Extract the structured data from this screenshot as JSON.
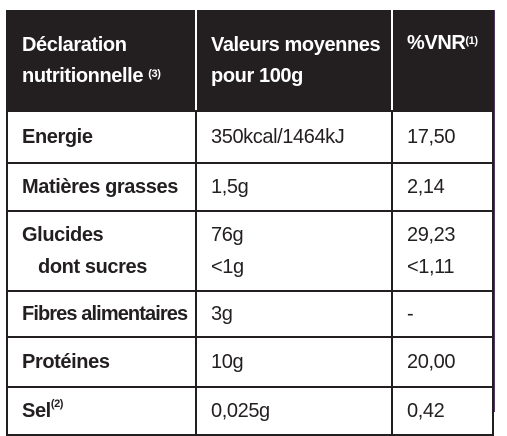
{
  "header": {
    "col1_line1": "Déclaration",
    "col1_line2": "nutritionnelle",
    "col1_sup": "(3)",
    "col2_line1": "Valeurs moyennes",
    "col2_line2": "pour 100g",
    "col3_label": "%VNR",
    "col3_sup": "(1)"
  },
  "rows": [
    {
      "label": "Energie",
      "value": "350kcal/1464kJ",
      "vnr": "17,50"
    },
    {
      "label": "Matières grasses",
      "value": "1,5g",
      "vnr": "2,14"
    },
    {
      "label": "Glucides",
      "value": "76g",
      "vnr": "29,23",
      "sub_label": "dont sucres",
      "sub_value": "<1g",
      "sub_vnr": "<1,11"
    },
    {
      "label": "Fibres alimentaires",
      "value": "3g",
      "vnr": "-"
    },
    {
      "label": "Protéines",
      "value": "10g",
      "vnr": "20,00"
    },
    {
      "label": "Sel",
      "label_sup": "(2)",
      "value": "0,025g",
      "vnr": "0,42"
    }
  ],
  "colors": {
    "ink": "#231f20",
    "accent": "#5b2a86",
    "background": "#ffffff"
  }
}
